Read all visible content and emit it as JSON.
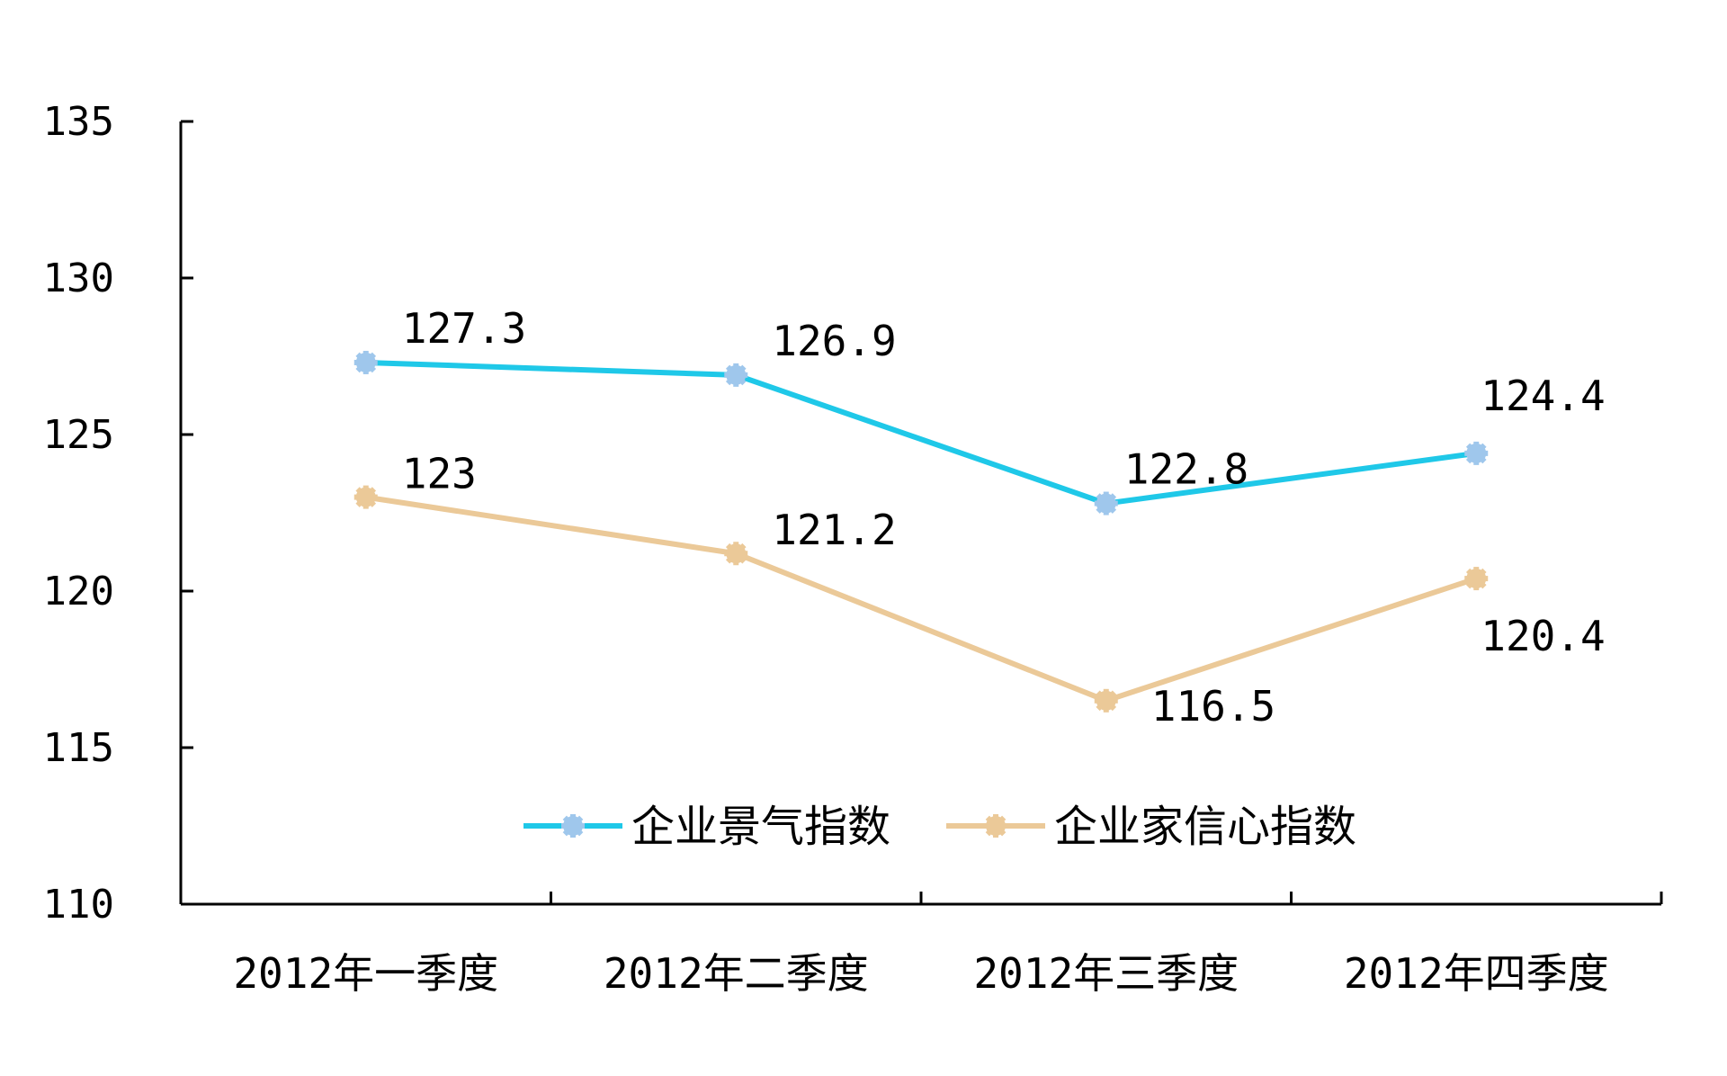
{
  "chart_data": {
    "type": "line",
    "categories": [
      "2012年一季度",
      "2012年二季度",
      "2012年三季度",
      "2012年四季度"
    ],
    "ylim": [
      110,
      135
    ],
    "yticks": [
      110,
      115,
      120,
      125,
      130,
      135
    ],
    "grid": false,
    "legend_position": "bottom-center inside plot",
    "series": [
      {
        "name": "企业景气指数",
        "values": [
          127.3,
          126.9,
          122.8,
          124.4
        ],
        "labels": [
          "127.3",
          "126.9",
          "122.8",
          "124.4"
        ],
        "color": "#1fc8e8",
        "marker_color": "#9fc7ec"
      },
      {
        "name": "企业家信心指数",
        "values": [
          123,
          121.2,
          116.5,
          120.4
        ],
        "labels": [
          "123",
          "121.2",
          "116.5",
          "120.4"
        ],
        "color": "#ebc998",
        "marker_color": "#ebc998"
      }
    ]
  }
}
